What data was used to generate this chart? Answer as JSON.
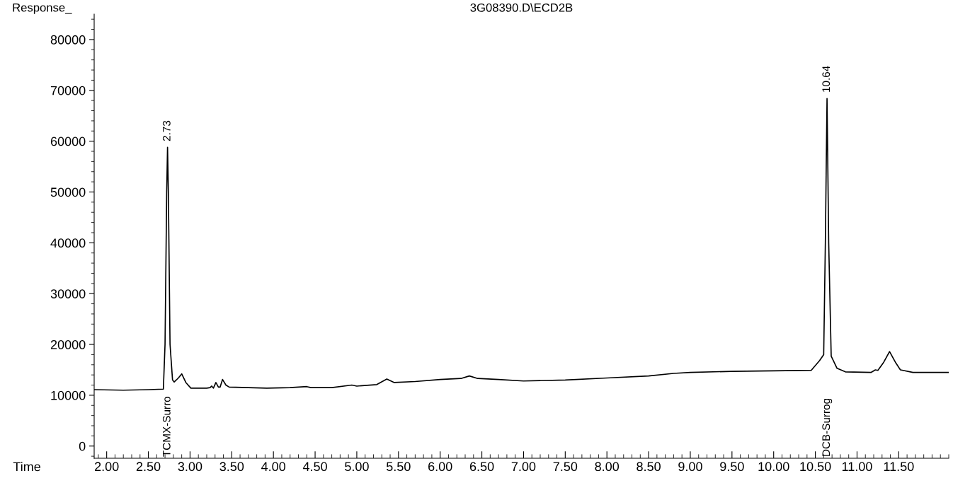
{
  "chart_data": {
    "type": "line",
    "title": "3G08390.D\\ECD2B",
    "xlabel": "Time",
    "ylabel": "Response_",
    "series": [
      {
        "color": "#000000",
        "x": [
          1.85,
          2.2,
          2.5,
          2.68,
          2.7,
          2.72,
          2.73,
          2.74,
          2.76,
          2.79,
          2.81,
          2.86,
          2.9,
          2.95,
          3.01,
          3.2,
          3.24,
          3.26,
          3.28,
          3.31,
          3.34,
          3.36,
          3.39,
          3.43,
          3.47,
          3.7,
          3.92,
          4.2,
          4.4,
          4.45,
          4.7,
          4.94,
          5.0,
          5.24,
          5.36,
          5.45,
          5.7,
          6.0,
          6.25,
          6.35,
          6.45,
          6.7,
          7.0,
          7.5,
          8.0,
          8.5,
          8.8,
          9.0,
          9.5,
          10.0,
          10.45,
          10.55,
          10.6,
          10.62,
          10.64,
          10.66,
          10.69,
          10.76,
          10.86,
          11.17,
          11.22,
          11.25,
          11.32,
          11.39,
          11.46,
          11.52,
          11.67,
          12.1
        ],
        "values": [
          11100,
          11000,
          11100,
          11200,
          20000,
          50000,
          58800,
          50000,
          20000,
          13000,
          12600,
          13400,
          14200,
          12500,
          11400,
          11400,
          11500,
          11800,
          11400,
          12500,
          11600,
          11600,
          13100,
          12000,
          11600,
          11500,
          11400,
          11500,
          11700,
          11500,
          11500,
          12000,
          11800,
          12100,
          13200,
          12500,
          12700,
          13100,
          13300,
          13800,
          13300,
          13100,
          12800,
          13000,
          13400,
          13800,
          14300,
          14500,
          14700,
          14800,
          14900,
          16800,
          18000,
          40000,
          68400,
          40000,
          17700,
          15300,
          14600,
          14500,
          15000,
          14900,
          16500,
          18600,
          16500,
          15000,
          14500,
          14500
        ]
      }
    ],
    "xlim": [
      1.85,
      12.1
    ],
    "ylim": [
      -2400,
      85000
    ],
    "xticks": [
      {
        "value": 2.0,
        "label": "2.00"
      },
      {
        "value": 2.5,
        "label": "2.50"
      },
      {
        "value": 3.0,
        "label": "3.00"
      },
      {
        "value": 3.5,
        "label": "3.50"
      },
      {
        "value": 4.0,
        "label": "4.00"
      },
      {
        "value": 4.5,
        "label": "4.50"
      },
      {
        "value": 5.0,
        "label": "5.00"
      },
      {
        "value": 5.5,
        "label": "5.50"
      },
      {
        "value": 6.0,
        "label": "6.00"
      },
      {
        "value": 6.5,
        "label": "6.50"
      },
      {
        "value": 7.0,
        "label": "7.00"
      },
      {
        "value": 7.5,
        "label": "7.50"
      },
      {
        "value": 8.0,
        "label": "8.00"
      },
      {
        "value": 8.5,
        "label": "8.50"
      },
      {
        "value": 9.0,
        "label": "9.00"
      },
      {
        "value": 9.5,
        "label": "9.50"
      },
      {
        "value": 10.0,
        "label": "10.00"
      },
      {
        "value": 10.5,
        "label": "10.50"
      },
      {
        "value": 11.0,
        "label": "11.00"
      },
      {
        "value": 11.5,
        "label": "11.50"
      }
    ],
    "yticks": [
      0,
      10000,
      20000,
      30000,
      40000,
      50000,
      60000,
      70000,
      80000
    ],
    "grid": false,
    "marker": "none",
    "line_style": "solid",
    "annotations": [
      {
        "text": "2.73",
        "x": 2.73,
        "y": 58800
      },
      {
        "text": "10.64",
        "x": 10.64,
        "y": 68400
      },
      "TCMX-Surro",
      "DCB-Surrog"
    ]
  }
}
